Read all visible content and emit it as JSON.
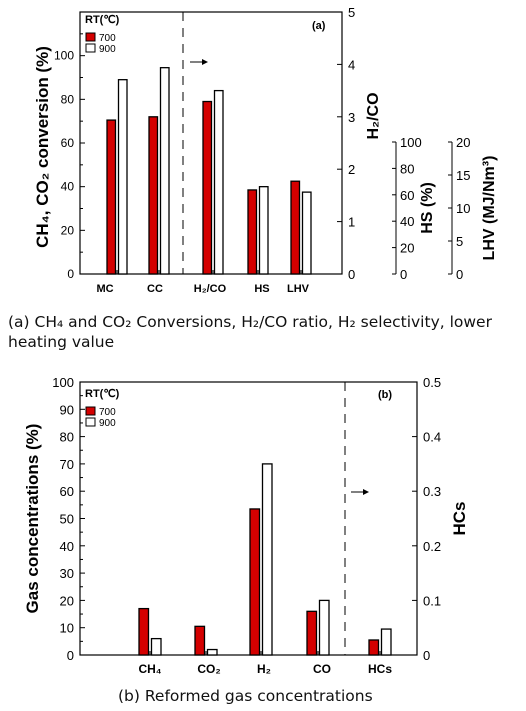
{
  "colors": {
    "red": "#d40000",
    "white": "#ffffff",
    "stroke": "#000000"
  },
  "captions": {
    "a": "(a) CH₄ and CO₂ Conversions, H₂/CO ratio, H₂ selectivity, lower heating value",
    "b": "(b) Reformed gas concentrations"
  },
  "chart_data": [
    {
      "type": "bar",
      "panel_label": "(a)",
      "legend_title": "RT(℃)",
      "categories": [
        "MC",
        "CC",
        "H₂/CO",
        "HS",
        "LHV"
      ],
      "series": [
        {
          "name": "700",
          "values": [
            70.5,
            72,
            79,
            38.5,
            42.5
          ]
        },
        {
          "name": "900",
          "values": [
            89,
            94.5,
            84,
            40,
            37.5
          ]
        }
      ],
      "ylabel": "CH₄, CO₂ conversion (%)",
      "ylim": [
        0,
        120
      ],
      "yticks": [
        "0",
        "20",
        "40",
        "60",
        "80",
        "100"
      ],
      "right_axes": [
        {
          "label": "H₂/CO",
          "ylim": [
            0,
            5
          ],
          "ticks": [
            "0",
            "1",
            "2",
            "3",
            "4",
            "5"
          ]
        },
        {
          "label": "HS (%)",
          "ylim": [
            0,
            100
          ],
          "ticks": [
            "0",
            "20",
            "40",
            "60",
            "80",
            "100"
          ]
        },
        {
          "label": "LHV (MJ/Nm³)",
          "ylim": [
            0,
            20
          ],
          "ticks": [
            "0",
            "5",
            "10",
            "15",
            "20"
          ]
        }
      ],
      "arrow": "right"
    },
    {
      "type": "bar",
      "panel_label": "(b)",
      "legend_title": "RT(℃)",
      "categories": [
        "CH₄",
        "CO₂",
        "H₂",
        "CO",
        "HCs"
      ],
      "series": [
        {
          "name": "700",
          "values": [
            17,
            10.5,
            53.5,
            16,
            5.5
          ]
        },
        {
          "name": "900",
          "values": [
            6,
            2,
            70,
            20,
            9.5
          ]
        }
      ],
      "ylabel": "Gas concentrations (%)",
      "ylim": [
        0,
        100
      ],
      "yticks": [
        "0",
        "10",
        "20",
        "30",
        "40",
        "50",
        "60",
        "70",
        "80",
        "90",
        "100"
      ],
      "right_axes": [
        {
          "label": "HCs",
          "ylim": [
            0,
            0.5
          ],
          "ticks": [
            "0",
            "0.1",
            "0.2",
            "0.3",
            "0.4",
            "0.5"
          ]
        }
      ],
      "arrow": "right"
    }
  ]
}
